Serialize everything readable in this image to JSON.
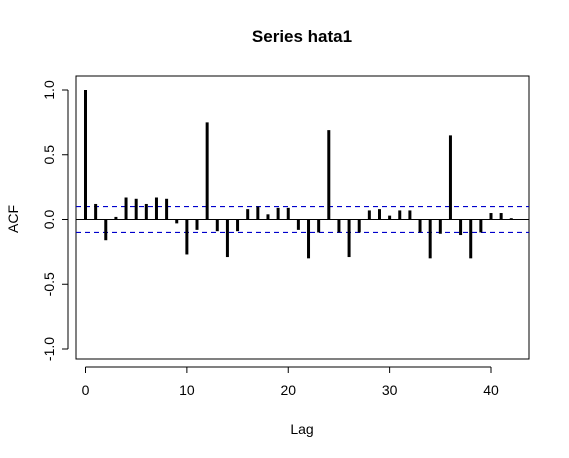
{
  "chart_data": {
    "type": "bar",
    "title": "Series  hata1",
    "xlabel": "Lag",
    "ylabel": "ACF",
    "xlim": [
      0,
      42
    ],
    "ylim": [
      -1.0,
      1.0
    ],
    "x_ticks": [
      "0",
      "10",
      "20",
      "30",
      "40"
    ],
    "x_tick_values": [
      0,
      10,
      20,
      30,
      40
    ],
    "y_ticks": [
      "-1.0",
      "-0.5",
      "0.0",
      "0.5",
      "1.0"
    ],
    "y_tick_values": [
      -1.0,
      -0.5,
      0.0,
      0.5,
      1.0
    ],
    "confidence_bound": 0.1,
    "lags": [
      0,
      1,
      2,
      3,
      4,
      5,
      6,
      7,
      8,
      9,
      10,
      11,
      12,
      13,
      14,
      15,
      16,
      17,
      18,
      19,
      20,
      21,
      22,
      23,
      24,
      25,
      26,
      27,
      28,
      29,
      30,
      31,
      32,
      33,
      34,
      35,
      36,
      37,
      38,
      39,
      40,
      41,
      42
    ],
    "values": [
      1.0,
      0.12,
      -0.16,
      0.02,
      0.17,
      0.16,
      0.12,
      0.17,
      0.16,
      -0.03,
      -0.27,
      -0.08,
      0.75,
      -0.09,
      -0.29,
      -0.09,
      0.08,
      0.1,
      0.04,
      0.09,
      0.09,
      -0.08,
      -0.3,
      -0.1,
      0.69,
      -0.1,
      -0.29,
      -0.1,
      0.07,
      0.08,
      0.03,
      0.07,
      0.07,
      -0.1,
      -0.3,
      -0.11,
      0.65,
      -0.12,
      -0.3,
      -0.1,
      0.05,
      0.05,
      0.01
    ],
    "colors": {
      "bars": "#000000",
      "confidence": "#0000cc",
      "zero_line": "#000000"
    }
  }
}
